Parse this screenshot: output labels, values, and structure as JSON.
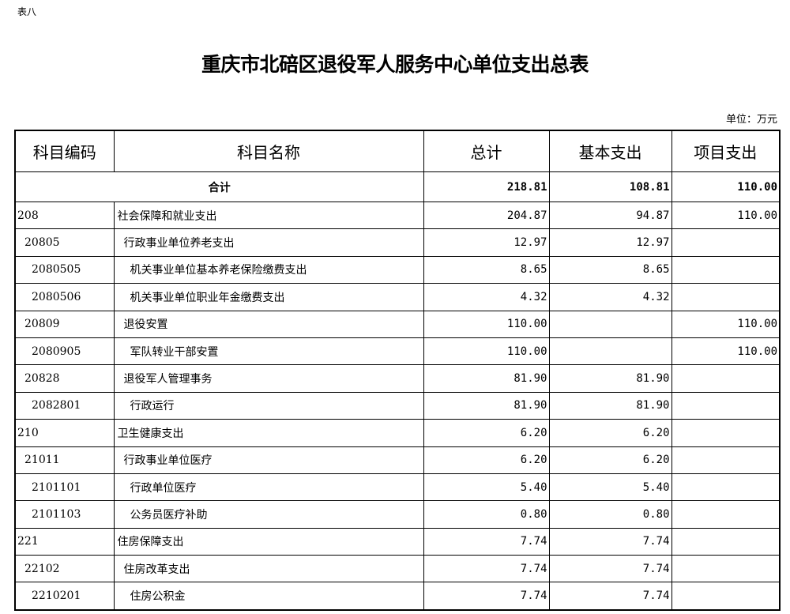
{
  "tag": "表八",
  "title": "重庆市北碚区退役军人服务中心单位支出总表",
  "unit": "单位：万元",
  "headers": [
    "科目编码",
    "科目名称",
    "总计",
    "基本支出",
    "项目支出"
  ],
  "total": {
    "label": "合计",
    "total": "218.81",
    "basic": "108.81",
    "project": "110.00"
  },
  "rows": [
    {
      "level": 1,
      "code": "208",
      "name": "社会保障和就业支出",
      "total": "204.87",
      "basic": "94.87",
      "project": "110.00"
    },
    {
      "level": 2,
      "code": "20805",
      "name": "行政事业单位养老支出",
      "total": "12.97",
      "basic": "12.97",
      "project": ""
    },
    {
      "level": 3,
      "code": "2080505",
      "name": "机关事业单位基本养老保险缴费支出",
      "total": "8.65",
      "basic": "8.65",
      "project": ""
    },
    {
      "level": 3,
      "code": "2080506",
      "name": "机关事业单位职业年金缴费支出",
      "total": "4.32",
      "basic": "4.32",
      "project": ""
    },
    {
      "level": 2,
      "code": "20809",
      "name": "退役安置",
      "total": "110.00",
      "basic": "",
      "project": "110.00"
    },
    {
      "level": 3,
      "code": "2080905",
      "name": "军队转业干部安置",
      "total": "110.00",
      "basic": "",
      "project": "110.00"
    },
    {
      "level": 2,
      "code": "20828",
      "name": "退役军人管理事务",
      "total": "81.90",
      "basic": "81.90",
      "project": ""
    },
    {
      "level": 3,
      "code": "2082801",
      "name": "行政运行",
      "total": "81.90",
      "basic": "81.90",
      "project": ""
    },
    {
      "level": 1,
      "code": "210",
      "name": "卫生健康支出",
      "total": "6.20",
      "basic": "6.20",
      "project": ""
    },
    {
      "level": 2,
      "code": "21011",
      "name": "行政事业单位医疗",
      "total": "6.20",
      "basic": "6.20",
      "project": ""
    },
    {
      "level": 3,
      "code": "2101101",
      "name": "行政单位医疗",
      "total": "5.40",
      "basic": "5.40",
      "project": ""
    },
    {
      "level": 3,
      "code": "2101103",
      "name": "公务员医疗补助",
      "total": "0.80",
      "basic": "0.80",
      "project": ""
    },
    {
      "level": 1,
      "code": "221",
      "name": "住房保障支出",
      "total": "7.74",
      "basic": "7.74",
      "project": ""
    },
    {
      "level": 2,
      "code": "22102",
      "name": "住房改革支出",
      "total": "7.74",
      "basic": "7.74",
      "project": ""
    },
    {
      "level": 3,
      "code": "2210201",
      "name": "住房公积金",
      "total": "7.74",
      "basic": "7.74",
      "project": ""
    }
  ]
}
